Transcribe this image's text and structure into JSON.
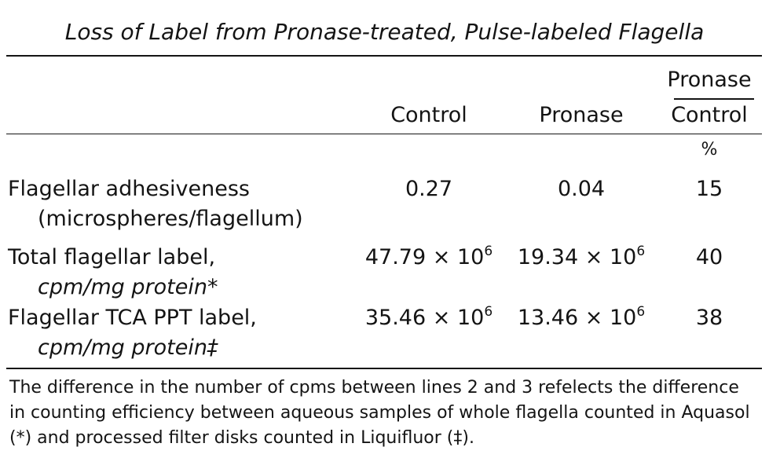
{
  "title": "Loss of Label from Pronase-treated, Pulse-labeled Flagella",
  "columns": {
    "control": "Control",
    "pronase": "Pronase",
    "ratio_numerator": "Pronase",
    "ratio_denominator": "Control",
    "ratio_unit": "%"
  },
  "rows": [
    {
      "label": "Flagellar adhesiveness",
      "sublabel": "(microspheres/flagellum)",
      "control": "0.27",
      "pronase": "0.04",
      "ratio": "15"
    },
    {
      "label": "Total flagellar label,",
      "sublabel": "cpm/mg protein*",
      "control_mantissa": "47.79 × 10",
      "control_exp": "6",
      "pronase_mantissa": "19.34 × 10",
      "pronase_exp": "6",
      "ratio": "40"
    },
    {
      "label": "Flagellar TCA PPT label,",
      "sublabel": "cpm/mg protein‡",
      "control_mantissa": "35.46 × 10",
      "control_exp": "6",
      "pronase_mantissa": "13.46 × 10",
      "pronase_exp": "6",
      "ratio": "38"
    }
  ],
  "footnote": "The difference in the number of cpms between lines 2 and 3 refelects the difference in counting efficiency between aqueous samples of whole flagella counted in Aquasol (*) and processed filter disks counted in Liquifluor (‡)."
}
